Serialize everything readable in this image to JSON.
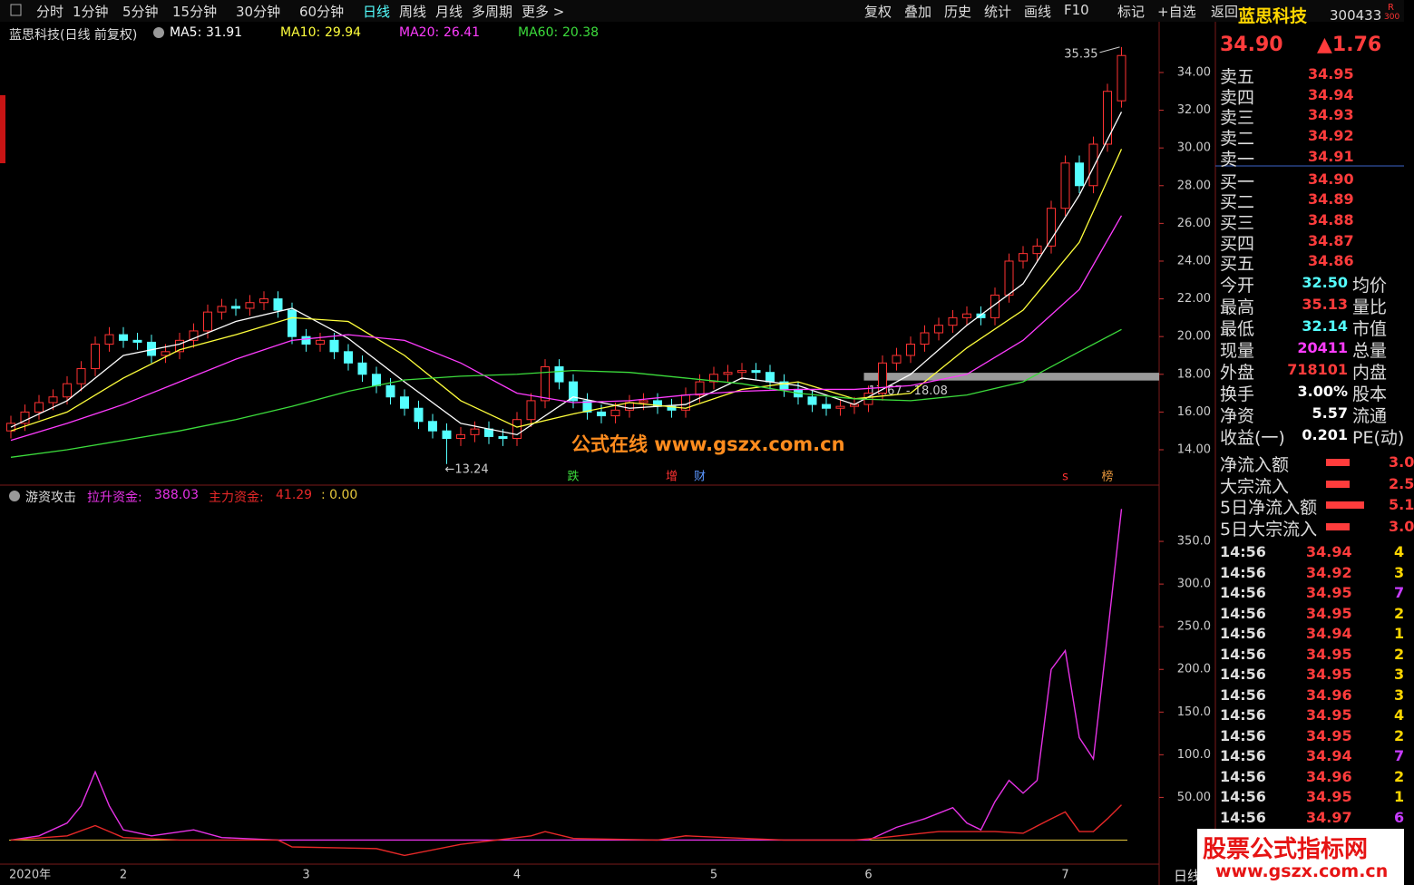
{
  "toolbar": {
    "periods": [
      "分时",
      "1分钟",
      "5分钟",
      "15分钟",
      "30分钟",
      "60分钟",
      "日线",
      "周线",
      "月线",
      "多周期",
      "更多 >"
    ],
    "active": "日线",
    "actions": [
      "复权",
      "叠加",
      "历史",
      "统计",
      "画线",
      "F10",
      "标记",
      "+自选",
      "返回"
    ]
  },
  "stock_header": {
    "name": "蓝思科技",
    "code": "300433",
    "badge": "R",
    "badge2": "300",
    "price": "34.90",
    "change": "▲1.76"
  },
  "order_book": [
    {
      "label": "卖五",
      "price": "34.95"
    },
    {
      "label": "卖四",
      "price": "34.94"
    },
    {
      "label": "卖三",
      "price": "34.93"
    },
    {
      "label": "卖二",
      "price": "34.92"
    },
    {
      "label": "卖一",
      "price": "34.91"
    },
    {
      "label": "买一",
      "price": "34.90"
    },
    {
      "label": "买二",
      "price": "34.89"
    },
    {
      "label": "买三",
      "price": "34.88"
    },
    {
      "label": "买四",
      "price": "34.87"
    },
    {
      "label": "买五",
      "price": "34.86"
    }
  ],
  "stats": [
    {
      "label": "今开",
      "value": "32.50",
      "label2": "均价",
      "color": "#54ffff"
    },
    {
      "label": "最高",
      "value": "35.13",
      "label2": "量比",
      "color": "#ff3c3c"
    },
    {
      "label": "最低",
      "value": "32.14",
      "label2": "市值",
      "color": "#54ffff"
    },
    {
      "label": "现量",
      "value": "20411",
      "label2": "总量",
      "color": "#ff3cff"
    },
    {
      "label": "外盘",
      "value": "718101",
      "label2": "内盘",
      "color": "#ff3c3c"
    },
    {
      "label": "换手",
      "value": "3.00%",
      "label2": "股本",
      "color": "#ffffff"
    },
    {
      "label": "净资",
      "value": "5.57",
      "label2": "流通",
      "color": "#ffffff"
    },
    {
      "label": "收益(一)",
      "value": "0.201",
      "label2": "PE(动)",
      "color": "#ffffff"
    }
  ],
  "flows": [
    {
      "label": "净流入额",
      "value": "3.0"
    },
    {
      "label": "大宗流入",
      "value": "2.5"
    },
    {
      "label": "5日净流入额",
      "value": "5.1"
    },
    {
      "label": "5日大宗流入",
      "value": "3.0"
    }
  ],
  "trades": [
    [
      "14:56",
      "34.94",
      "4"
    ],
    [
      "14:56",
      "34.92",
      "3"
    ],
    [
      "14:56",
      "34.95",
      "7"
    ],
    [
      "14:56",
      "34.95",
      "2"
    ],
    [
      "14:56",
      "34.94",
      "1"
    ],
    [
      "14:56",
      "34.95",
      "2"
    ],
    [
      "14:56",
      "34.95",
      "3"
    ],
    [
      "14:56",
      "34.96",
      "3"
    ],
    [
      "14:56",
      "34.95",
      "4"
    ],
    [
      "14:56",
      "34.95",
      "2"
    ],
    [
      "14:56",
      "34.94",
      "7"
    ],
    [
      "14:56",
      "34.96",
      "2"
    ],
    [
      "14:56",
      "34.95",
      "1"
    ],
    [
      "14:56",
      "34.97",
      "6"
    ]
  ],
  "watermark": "公式在线 www.gszx.com.cn",
  "footer": {
    "period": "日线",
    "brand": "股票公式指标网",
    "url": "www.gszx.com.cn"
  },
  "chart_data": [
    {
      "type": "candlestick",
      "title": "蓝思科技(日线 前复权)",
      "ylim": [
        12.125,
        35.68
      ],
      "yticks": [
        {
          "value": 14,
          "label": "14.00"
        },
        {
          "value": 16,
          "label": "16.00"
        },
        {
          "value": 18,
          "label": "18.00"
        },
        {
          "value": 20,
          "label": "20.00"
        },
        {
          "value": 22,
          "label": "22.00"
        },
        {
          "value": 24,
          "label": "24.00"
        },
        {
          "value": 26,
          "label": "26.00"
        },
        {
          "value": 28,
          "label": "28.00"
        },
        {
          "value": 30,
          "label": "30.00"
        },
        {
          "value": 32,
          "label": "32.00"
        },
        {
          "value": 34,
          "label": "34.00"
        }
      ],
      "up_color": "#ff3232",
      "down_color": "#54ffff",
      "open": [
        15.0,
        15.4,
        16.0,
        16.5,
        16.8,
        17.5,
        18.3,
        19.6,
        20.1,
        19.8,
        19.7,
        19.0,
        19.2,
        19.8,
        20.3,
        21.3,
        21.6,
        21.5,
        21.8,
        22.0,
        21.4,
        20.0,
        19.6,
        19.8,
        19.2,
        18.6,
        18.0,
        17.4,
        16.8,
        16.2,
        15.5,
        15.0,
        14.6,
        14.8,
        15.1,
        14.7,
        14.6,
        15.6,
        16.6,
        18.4,
        17.6,
        16.6,
        16.0,
        15.8,
        16.1,
        16.5,
        16.6,
        16.3,
        16.1,
        16.9,
        17.6,
        18.0,
        18.1,
        18.2,
        18.1,
        17.6,
        17.2,
        16.8,
        16.4,
        16.2,
        16.3,
        16.4,
        17.0,
        18.6,
        19.0,
        19.6,
        20.2,
        20.6,
        21.0,
        21.2,
        21.0,
        22.2,
        24.0,
        24.4,
        24.8,
        26.8,
        29.2,
        28.0,
        30.2,
        32.5
      ],
      "high": [
        15.8,
        16.4,
        16.9,
        17.2,
        17.9,
        18.7,
        20.0,
        20.5,
        20.5,
        20.2,
        20.1,
        19.6,
        20.2,
        20.7,
        21.7,
        22.0,
        22.0,
        22.2,
        22.4,
        22.4,
        21.8,
        20.4,
        20.2,
        20.2,
        19.6,
        19.0,
        18.4,
        17.8,
        17.2,
        16.6,
        15.9,
        15.4,
        15.2,
        15.5,
        15.5,
        15.1,
        16.0,
        17.0,
        18.8,
        18.8,
        18.0,
        17.0,
        16.4,
        16.5,
        16.9,
        17.0,
        17.0,
        16.7,
        17.3,
        18.0,
        18.4,
        18.5,
        18.6,
        18.6,
        18.5,
        18.0,
        17.6,
        17.2,
        16.8,
        16.7,
        16.8,
        17.4,
        19.0,
        19.4,
        20.0,
        20.6,
        21.0,
        21.4,
        21.6,
        21.6,
        22.6,
        24.4,
        24.8,
        25.2,
        27.2,
        29.6,
        29.6,
        30.6,
        33.4,
        35.35
      ],
      "low": [
        14.6,
        15.0,
        15.6,
        16.1,
        16.4,
        17.1,
        17.9,
        19.2,
        19.4,
        19.3,
        18.6,
        18.6,
        18.8,
        19.4,
        19.9,
        20.9,
        21.1,
        21.1,
        21.4,
        21.0,
        19.6,
        19.2,
        19.2,
        18.8,
        18.2,
        17.6,
        17.0,
        16.4,
        15.8,
        15.1,
        14.6,
        13.24,
        14.2,
        14.4,
        14.3,
        14.2,
        14.2,
        15.2,
        16.2,
        17.2,
        16.2,
        15.6,
        15.4,
        15.4,
        15.7,
        16.1,
        15.9,
        15.7,
        15.7,
        16.5,
        17.2,
        17.6,
        17.7,
        17.7,
        17.2,
        16.8,
        16.4,
        16.0,
        15.8,
        15.8,
        15.9,
        16.0,
        16.6,
        18.2,
        18.6,
        19.2,
        19.8,
        20.2,
        20.6,
        20.6,
        20.6,
        21.8,
        23.6,
        24.0,
        24.4,
        26.4,
        27.6,
        27.6,
        29.8,
        32.14
      ],
      "close": [
        15.4,
        16.0,
        16.5,
        16.8,
        17.5,
        18.3,
        19.6,
        20.1,
        19.8,
        19.7,
        19.0,
        19.2,
        19.8,
        20.3,
        21.3,
        21.6,
        21.5,
        21.8,
        22.0,
        21.4,
        20.0,
        19.6,
        19.8,
        19.2,
        18.6,
        18.0,
        17.4,
        16.8,
        16.2,
        15.5,
        15.0,
        14.6,
        14.8,
        15.1,
        14.7,
        14.6,
        15.6,
        16.6,
        18.4,
        17.6,
        16.6,
        16.0,
        15.8,
        16.1,
        16.5,
        16.6,
        16.3,
        16.1,
        16.9,
        17.6,
        18.0,
        18.1,
        18.2,
        18.1,
        17.6,
        17.2,
        16.8,
        16.4,
        16.2,
        16.3,
        16.4,
        17.0,
        18.6,
        19.0,
        19.6,
        20.2,
        20.6,
        21.0,
        21.2,
        21.0,
        22.2,
        24.0,
        24.4,
        24.8,
        26.8,
        29.2,
        28.0,
        30.2,
        33.0,
        34.9
      ],
      "ma_x": [
        0,
        4,
        8,
        12,
        16,
        20,
        24,
        28,
        32,
        36,
        40,
        44,
        48,
        52,
        56,
        60,
        64,
        68,
        72,
        76,
        79
      ],
      "series": [
        {
          "name": "MA5:",
          "color": "#ffffff",
          "values": [
            15.2,
            16.6,
            19.0,
            19.6,
            20.8,
            21.5,
            19.9,
            17.6,
            15.4,
            14.8,
            16.8,
            16.2,
            16.4,
            17.8,
            17.4,
            16.4,
            18.0,
            20.6,
            22.8,
            27.5,
            31.91
          ]
        },
        {
          "name": "MA10:",
          "color": "#ffff3c",
          "values": [
            15.0,
            16.0,
            17.8,
            19.3,
            20.1,
            21.0,
            20.8,
            19.0,
            16.6,
            15.2,
            15.9,
            16.5,
            16.2,
            17.2,
            17.6,
            16.7,
            17.0,
            19.4,
            21.4,
            25.0,
            29.94
          ]
        },
        {
          "name": "MA20:",
          "color": "#ff3cff",
          "values": [
            14.5,
            15.4,
            16.4,
            17.6,
            18.8,
            19.8,
            20.1,
            19.8,
            18.6,
            17.0,
            16.5,
            16.6,
            16.9,
            17.1,
            17.2,
            17.2,
            17.4,
            18.0,
            19.8,
            22.5,
            26.41
          ]
        },
        {
          "name": "MA60:",
          "color": "#3cdc3c",
          "values": [
            13.6,
            14.0,
            14.5,
            15.0,
            15.6,
            16.3,
            17.1,
            17.7,
            17.9,
            18.0,
            18.2,
            18.1,
            17.8,
            17.5,
            17.0,
            16.7,
            16.6,
            16.9,
            17.6,
            19.2,
            20.38
          ]
        }
      ],
      "range_box": {
        "start": 61,
        "low": 17.67,
        "high": 18.08,
        "label": "17.67 - 18.08"
      },
      "max_label": {
        "index": 79,
        "value": 35.35,
        "label": "35.35"
      },
      "min_label": {
        "index": 31,
        "value": 13.24,
        "label": "←13.24"
      },
      "markers": [
        {
          "text": "跌",
          "index": 40,
          "color": "#3cdc3c"
        },
        {
          "text": "增",
          "index": 47,
          "color": "#ff3232"
        },
        {
          "text": "财",
          "index": 49,
          "color": "#5a96ff"
        },
        {
          "text": "s",
          "index": 75,
          "color": "#ff3232"
        },
        {
          "text": "榜",
          "index": 78,
          "color": "#e6963c"
        }
      ],
      "x_labels": [
        {
          "index": 0,
          "label": "2020年"
        },
        {
          "index": 8,
          "label": "2"
        },
        {
          "index": 21,
          "label": "3"
        },
        {
          "index": 36,
          "label": "4"
        },
        {
          "index": 50,
          "label": "5"
        },
        {
          "index": 61,
          "label": "6"
        },
        {
          "index": 75,
          "label": "7"
        }
      ]
    },
    {
      "type": "line",
      "title": "游资攻击",
      "ylim": [
        -25,
        400
      ],
      "yticks": [
        {
          "value": 50,
          "label": "50.00"
        },
        {
          "value": 100,
          "label": "100.0"
        },
        {
          "value": 150,
          "label": "150.0"
        },
        {
          "value": 200,
          "label": "200.0"
        },
        {
          "value": 250,
          "label": "250.0"
        },
        {
          "value": 300,
          "label": "300.0"
        },
        {
          "value": 350,
          "label": "350.0"
        }
      ],
      "series": [
        {
          "name": "拉升资金:",
          "color": "#e632e6",
          "x": [
            0,
            2,
            4,
            5,
            6,
            7,
            8,
            10,
            13,
            15,
            19,
            61,
            63,
            65,
            67,
            68,
            69,
            70,
            71,
            72,
            73,
            74,
            75,
            76,
            77,
            78,
            79
          ],
          "values": [
            0,
            5,
            20,
            40,
            80,
            40,
            12,
            5,
            12,
            3,
            0,
            0,
            15,
            25,
            38,
            20,
            12,
            45,
            70,
            55,
            70,
            200,
            222,
            120,
            95,
            240,
            388.03
          ]
        },
        {
          "name": "主力资金:",
          "color": "#e62828",
          "x": [
            0,
            4,
            6,
            8,
            12,
            19,
            20,
            26,
            28,
            32,
            37,
            38,
            40,
            46,
            48,
            55,
            60,
            62,
            66,
            70,
            72,
            74,
            75,
            76,
            77,
            78,
            79
          ],
          "values": [
            0,
            5,
            17,
            3,
            0,
            0,
            -8,
            -10,
            -18,
            -5,
            5,
            10,
            2,
            0,
            5,
            0,
            0,
            3,
            10,
            10,
            8,
            25,
            33,
            10,
            10,
            25,
            41.29
          ]
        }
      ],
      "baseline": {
        "value": 0,
        "label": ": 0.00",
        "color": "#e6c83c"
      }
    }
  ]
}
